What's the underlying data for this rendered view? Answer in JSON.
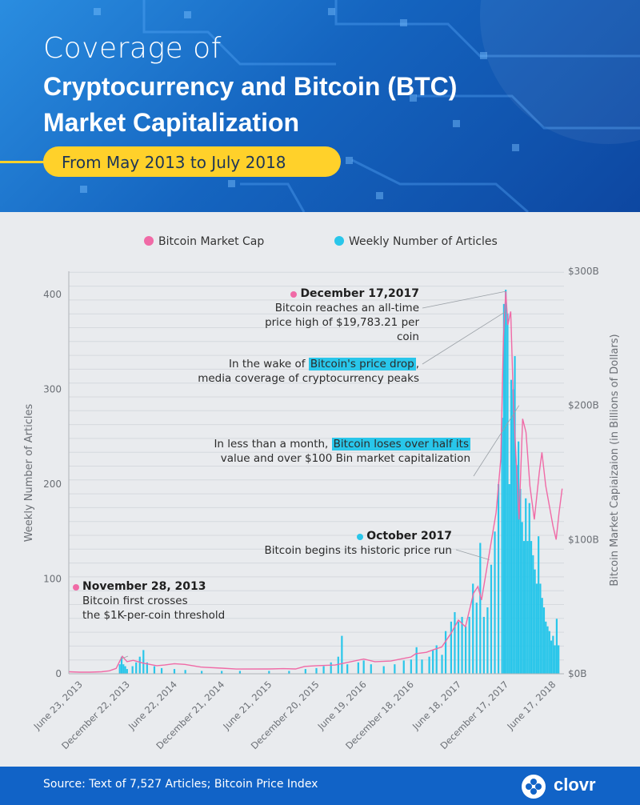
{
  "header": {
    "title_light": "Coverage of",
    "title_bold_line1": "Cryptocurrency and Bitcoin (BTC)",
    "title_bold_line2": "Market Capitalization",
    "subtitle": "From May 2013 to July 2018"
  },
  "colors": {
    "market_cap": "#f06aa6",
    "articles": "#29c6ea",
    "header_blue": "#1565c0",
    "pill_yellow": "#ffd12a",
    "footer_blue": "#1163c7"
  },
  "annotations": {
    "dec2017_date": "December 17,2017",
    "dec2017_line1": "Bitcoin reaches an all-time",
    "dec2017_line2": "price high of $19,783.21 per coin",
    "drop_pre": "In the wake of ",
    "drop_hl": "Bitcoin's price drop",
    "drop_post": ",",
    "drop_line2": "media coverage of cryptocurrency peaks",
    "half_pre": "In less than a month, ",
    "half_hl": "Bitcoin loses over half its",
    "half_line2": "value and over $100 Bin market capitalization",
    "oct2017_date": "October 2017",
    "oct2017_line1": "Bitcoin begins its historic price run",
    "nov2013_date": "November 28, 2013",
    "nov2013_line1": "Bitcoin first crosses",
    "nov2013_line2": "the $1K-per-coin threshold"
  },
  "footer": {
    "source": "Source: Text of 7,527 Articles; Bitcoin Price Index",
    "logo": "clovr"
  },
  "chart_data": {
    "type": "bar",
    "x_ticks": [
      "June 23, 2013",
      "December 22, 2013",
      "June 22, 2014",
      "December 21, 2014",
      "June 21, 2015",
      "December 20, 2015",
      "June 19, 2016",
      "December 18, 2016",
      "June 18, 2017",
      "December 17, 2017",
      "June 17, 2018"
    ],
    "ylabel": "Weekly Number of Articles",
    "y2label": "Bitcoin Market Capiaizaion (in Billions of Dollars)",
    "ylim": [
      0,
      400
    ],
    "y_ticks": [
      0,
      100,
      200,
      300,
      400
    ],
    "y2lim": [
      0,
      300
    ],
    "y2_ticks": [
      "$0B",
      "$100B",
      "$200B",
      "$300B"
    ],
    "legend": "top",
    "grid": true,
    "series": [
      {
        "name": "Bitcoin Market Cap",
        "kind": "line",
        "points": [
          [
            "2013-05-12",
            1.5
          ],
          [
            "2013-06-23",
            1.2
          ],
          [
            "2013-08-01",
            1.2
          ],
          [
            "2013-09-15",
            1.5
          ],
          [
            "2013-10-15",
            2.2
          ],
          [
            "2013-11-10",
            4
          ],
          [
            "2013-11-28",
            11
          ],
          [
            "2013-12-04",
            13
          ],
          [
            "2013-12-22",
            9
          ],
          [
            "2014-01-15",
            10
          ],
          [
            "2014-02-20",
            8
          ],
          [
            "2014-03-20",
            7
          ],
          [
            "2014-04-15",
            6
          ],
          [
            "2014-05-15",
            6.5
          ],
          [
            "2014-06-22",
            7.5
          ],
          [
            "2014-08-01",
            7
          ],
          [
            "2014-10-01",
            5
          ],
          [
            "2014-12-21",
            4.2
          ],
          [
            "2015-02-15",
            3.5
          ],
          [
            "2015-06-21",
            3.6
          ],
          [
            "2015-08-15",
            3.8
          ],
          [
            "2015-10-01",
            3.6
          ],
          [
            "2015-11-05",
            5.5
          ],
          [
            "2015-12-20",
            6
          ],
          [
            "2016-03-01",
            6.5
          ],
          [
            "2016-06-19",
            11
          ],
          [
            "2016-08-01",
            9
          ],
          [
            "2016-10-01",
            9.5
          ],
          [
            "2016-12-18",
            12.5
          ],
          [
            "2017-01-05",
            15
          ],
          [
            "2017-02-15",
            16
          ],
          [
            "2017-03-15",
            18
          ],
          [
            "2017-04-15",
            20
          ],
          [
            "2017-05-20",
            30
          ],
          [
            "2017-06-18",
            40
          ],
          [
            "2017-07-15",
            35
          ],
          [
            "2017-08-15",
            60
          ],
          [
            "2017-09-01",
            65
          ],
          [
            "2017-09-15",
            55
          ],
          [
            "2017-10-15",
            90
          ],
          [
            "2017-11-10",
            120
          ],
          [
            "2017-11-28",
            160
          ],
          [
            "2017-12-08",
            250
          ],
          [
            "2017-12-17",
            285
          ],
          [
            "2017-12-25",
            260
          ],
          [
            "2018-01-05",
            270
          ],
          [
            "2018-01-16",
            200
          ],
          [
            "2018-02-06",
            115
          ],
          [
            "2018-02-20",
            190
          ],
          [
            "2018-03-05",
            180
          ],
          [
            "2018-03-20",
            140
          ],
          [
            "2018-04-06",
            115
          ],
          [
            "2018-04-25",
            150
          ],
          [
            "2018-05-05",
            165
          ],
          [
            "2018-05-20",
            140
          ],
          [
            "2018-06-17",
            110
          ],
          [
            "2018-06-29",
            100
          ],
          [
            "2018-07-10",
            120
          ],
          [
            "2018-07-22",
            138
          ]
        ]
      },
      {
        "name": "Weekly Number of Articles",
        "kind": "bar",
        "points": [
          [
            "2013-11-24",
            10
          ],
          [
            "2013-12-01",
            18
          ],
          [
            "2013-12-08",
            10
          ],
          [
            "2013-12-15",
            8
          ],
          [
            "2013-12-22",
            5
          ],
          [
            "2014-01-12",
            8
          ],
          [
            "2014-01-26",
            12
          ],
          [
            "2014-02-09",
            18
          ],
          [
            "2014-02-23",
            25
          ],
          [
            "2014-03-09",
            12
          ],
          [
            "2014-04-06",
            8
          ],
          [
            "2014-05-04",
            6
          ],
          [
            "2014-06-22",
            5
          ],
          [
            "2014-08-03",
            4
          ],
          [
            "2014-10-05",
            3
          ],
          [
            "2014-12-21",
            3
          ],
          [
            "2015-03-01",
            3
          ],
          [
            "2015-06-21",
            3
          ],
          [
            "2015-09-06",
            3
          ],
          [
            "2015-11-08",
            5
          ],
          [
            "2015-12-20",
            6
          ],
          [
            "2016-01-17",
            8
          ],
          [
            "2016-02-14",
            12
          ],
          [
            "2016-03-13",
            18
          ],
          [
            "2016-03-27",
            40
          ],
          [
            "2016-04-17",
            10
          ],
          [
            "2016-05-29",
            12
          ],
          [
            "2016-06-19",
            14
          ],
          [
            "2016-07-17",
            10
          ],
          [
            "2016-09-04",
            8
          ],
          [
            "2016-10-16",
            10
          ],
          [
            "2016-11-20",
            14
          ],
          [
            "2016-12-18",
            15
          ],
          [
            "2017-01-08",
            28
          ],
          [
            "2017-01-29",
            15
          ],
          [
            "2017-02-26",
            18
          ],
          [
            "2017-03-12",
            25
          ],
          [
            "2017-03-26",
            30
          ],
          [
            "2017-04-16",
            20
          ],
          [
            "2017-04-30",
            45
          ],
          [
            "2017-05-21",
            55
          ],
          [
            "2017-06-04",
            65
          ],
          [
            "2017-06-18",
            55
          ],
          [
            "2017-07-02",
            60
          ],
          [
            "2017-07-16",
            50
          ],
          [
            "2017-07-30",
            60
          ],
          [
            "2017-08-13",
            95
          ],
          [
            "2017-08-27",
            75
          ],
          [
            "2017-09-10",
            138
          ],
          [
            "2017-09-24",
            60
          ],
          [
            "2017-10-08",
            70
          ],
          [
            "2017-10-22",
            115
          ],
          [
            "2017-11-05",
            150
          ],
          [
            "2017-11-19",
            200
          ],
          [
            "2017-12-03",
            270
          ],
          [
            "2017-12-10",
            390
          ],
          [
            "2017-12-17",
            405
          ],
          [
            "2017-12-24",
            380
          ],
          [
            "2017-12-31",
            200
          ],
          [
            "2018-01-07",
            310
          ],
          [
            "2018-01-14",
            300
          ],
          [
            "2018-01-21",
            335
          ],
          [
            "2018-01-28",
            220
          ],
          [
            "2018-02-04",
            245
          ],
          [
            "2018-02-11",
            195
          ],
          [
            "2018-02-18",
            160
          ],
          [
            "2018-02-25",
            140
          ],
          [
            "2018-03-04",
            185
          ],
          [
            "2018-03-11",
            140
          ],
          [
            "2018-03-18",
            180
          ],
          [
            "2018-03-25",
            140
          ],
          [
            "2018-04-01",
            125
          ],
          [
            "2018-04-08",
            110
          ],
          [
            "2018-04-15",
            95
          ],
          [
            "2018-04-22",
            145
          ],
          [
            "2018-04-29",
            95
          ],
          [
            "2018-05-06",
            80
          ],
          [
            "2018-05-13",
            70
          ],
          [
            "2018-05-20",
            55
          ],
          [
            "2018-05-27",
            50
          ],
          [
            "2018-06-03",
            45
          ],
          [
            "2018-06-10",
            35
          ],
          [
            "2018-06-17",
            40
          ],
          [
            "2018-06-24",
            30
          ],
          [
            "2018-07-01",
            58
          ],
          [
            "2018-07-08",
            30
          ]
        ]
      }
    ]
  }
}
